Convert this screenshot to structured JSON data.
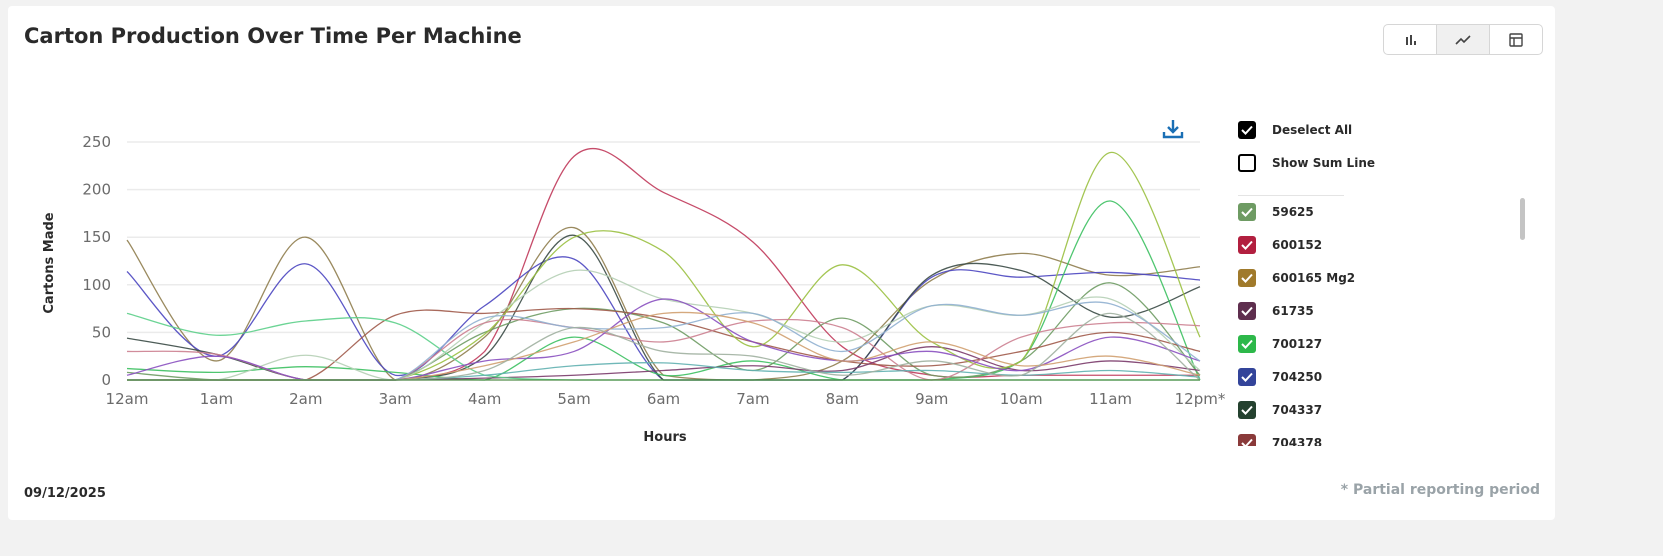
{
  "header": {
    "title": "Carton Production Over Time Per Machine"
  },
  "view_toggle": [
    {
      "icon": "bar-chart-icon",
      "active": false
    },
    {
      "icon": "line-chart-icon",
      "active": true
    },
    {
      "icon": "table-icon",
      "active": false
    }
  ],
  "download_icon": "download-icon",
  "legend": {
    "deselect_all": "Deselect All",
    "show_sum_line": "Show Sum Line",
    "deselect_all_checked": true,
    "show_sum_line_checked": false,
    "items": [
      {
        "label": "59625",
        "color": "#6e9b63",
        "checked": true
      },
      {
        "label": "600152",
        "color": "#b21f3f",
        "checked": true
      },
      {
        "label": "600165 Mg2",
        "color": "#a07a2b",
        "checked": true
      },
      {
        "label": "61735",
        "color": "#5e2e4e",
        "checked": true
      },
      {
        "label": "700127",
        "color": "#2db84a",
        "checked": true
      },
      {
        "label": "704250",
        "color": "#33449a",
        "checked": true
      },
      {
        "label": "704337",
        "color": "#24412f",
        "checked": true
      },
      {
        "label": "704378",
        "color": "#8a3a3a",
        "checked": true
      }
    ]
  },
  "footer": {
    "date": "09/12/2025",
    "note": "* Partial reporting period"
  },
  "chart_data": {
    "type": "line",
    "xlabel": "Hours",
    "ylabel": "Cartons Made",
    "categories": [
      "12am",
      "1am",
      "2am",
      "3am",
      "4am",
      "5am",
      "6am",
      "7am",
      "8am",
      "9am",
      "10am",
      "11am",
      "12pm*"
    ],
    "ylim": [
      0,
      250
    ],
    "yticks": [
      0,
      50,
      100,
      150,
      200,
      250
    ],
    "grid": true,
    "smooth": true,
    "series": [
      {
        "name": "600152",
        "color": "#c0385a",
        "values": [
          0,
          0,
          0,
          0,
          30,
          235,
          197,
          145,
          35,
          5,
          5,
          5,
          5
        ]
      },
      {
        "name": "600165 Mg2",
        "color": "#8f7d4e",
        "values": [
          147,
          20,
          150,
          0,
          45,
          160,
          5,
          0,
          20,
          105,
          133,
          110,
          119
        ]
      },
      {
        "name": "704250",
        "color": "#4a45c0",
        "values": [
          114,
          25,
          122,
          5,
          78,
          127,
          0,
          0,
          0,
          108,
          108,
          113,
          105
        ]
      },
      {
        "name": "704337",
        "color": "#3a4a45",
        "values": [
          44,
          27,
          0,
          0,
          25,
          152,
          0,
          0,
          0,
          110,
          115,
          66,
          98
        ]
      },
      {
        "name": "700127",
        "color": "#3cc060",
        "values": [
          12,
          8,
          14,
          8,
          0,
          45,
          5,
          20,
          0,
          0,
          20,
          188,
          0
        ]
      },
      {
        "name": "59625",
        "color": "#6e9b63",
        "values": [
          8,
          0,
          0,
          0,
          50,
          75,
          60,
          10,
          65,
          5,
          20,
          102,
          5
        ]
      },
      {
        "name": "704378",
        "color": "#a05a4a",
        "values": [
          0,
          0,
          0,
          68,
          70,
          75,
          65,
          40,
          20,
          15,
          30,
          50,
          30
        ]
      },
      {
        "name": "61735",
        "color": "#7a3a6a",
        "values": [
          0,
          0,
          0,
          0,
          2,
          5,
          10,
          15,
          10,
          35,
          10,
          20,
          10
        ]
      },
      {
        "color": "#9ac040",
        "values": [
          0,
          0,
          0,
          0,
          48,
          150,
          135,
          35,
          121,
          40,
          20,
          239,
          45
        ]
      },
      {
        "color": "#5ccf8a",
        "values": [
          70,
          47,
          62,
          60,
          5,
          0,
          0,
          0,
          0,
          0,
          0,
          0,
          0
        ]
      },
      {
        "color": "#b5cfb5",
        "values": [
          0,
          0,
          26,
          0,
          60,
          115,
          85,
          70,
          40,
          78,
          68,
          85,
          10
        ]
      },
      {
        "color": "#cc8090",
        "values": [
          30,
          27,
          0,
          0,
          60,
          55,
          40,
          62,
          55,
          0,
          45,
          60,
          57
        ]
      },
      {
        "color": "#8a50c0",
        "values": [
          5,
          25,
          0,
          0,
          20,
          30,
          85,
          40,
          20,
          30,
          10,
          45,
          20
        ]
      },
      {
        "color": "#90b0d0",
        "values": [
          0,
          0,
          0,
          0,
          65,
          55,
          55,
          70,
          30,
          78,
          68,
          80,
          20
        ]
      },
      {
        "color": "#d0a070",
        "values": [
          0,
          0,
          0,
          0,
          15,
          40,
          70,
          60,
          20,
          40,
          15,
          25,
          5
        ]
      },
      {
        "color": "#60b0b0",
        "values": [
          0,
          0,
          0,
          0,
          5,
          15,
          18,
          10,
          8,
          10,
          5,
          10,
          3
        ]
      },
      {
        "color": "#a0b0a0",
        "values": [
          0,
          0,
          0,
          0,
          10,
          55,
          30,
          25,
          5,
          20,
          5,
          70,
          0
        ]
      },
      {
        "color": "#4a8a40",
        "values": [
          0,
          0,
          0,
          0,
          0,
          0,
          0,
          0,
          0,
          0,
          0,
          0,
          0
        ]
      }
    ]
  }
}
